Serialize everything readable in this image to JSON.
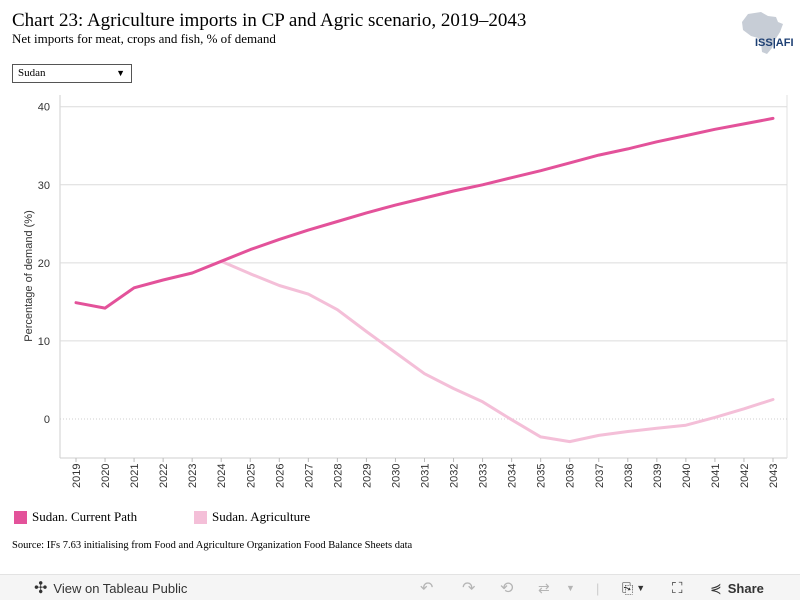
{
  "header": {
    "title": "Chart 23: Agriculture imports in CP and Agric scenario, 2019–2043",
    "subtitle": "Net imports for meat, crops and fish, % of demand",
    "logo_text": "ISS|AFI"
  },
  "filter": {
    "selected": "Sudan"
  },
  "chart_data": {
    "type": "line",
    "x": [
      2019,
      2020,
      2021,
      2022,
      2023,
      2024,
      2025,
      2026,
      2027,
      2028,
      2029,
      2030,
      2031,
      2032,
      2033,
      2034,
      2035,
      2036,
      2037,
      2038,
      2039,
      2040,
      2041,
      2042,
      2043
    ],
    "series": [
      {
        "name": "Sudan. Current Path",
        "color": "#e3529a",
        "values": [
          14.9,
          14.2,
          16.8,
          17.8,
          18.7,
          20.2,
          21.7,
          23.0,
          24.2,
          25.3,
          26.4,
          27.4,
          28.3,
          29.2,
          30.0,
          30.9,
          31.8,
          32.8,
          33.8,
          34.6,
          35.5,
          36.3,
          37.1,
          37.8,
          38.5
        ]
      },
      {
        "name": "Sudan. Agriculture",
        "color": "#f4bfd8",
        "values": [
          null,
          null,
          null,
          null,
          null,
          20.2,
          18.6,
          17.1,
          16.0,
          14.0,
          11.2,
          8.5,
          5.8,
          3.9,
          2.2,
          -0.1,
          -2.3,
          -2.9,
          -2.1,
          -1.6,
          -1.2,
          -0.8,
          0.2,
          1.3,
          2.5
        ]
      }
    ],
    "yticks": [
      0,
      10,
      20,
      30,
      40
    ],
    "ylim": [
      -5,
      41.5
    ],
    "ylabel": "Percentage of demand (%)",
    "xlabel": "",
    "grid": true,
    "legend": "bottom-left"
  },
  "legend": {
    "items": [
      {
        "label": "Sudan. Current Path",
        "color": "#e3529a"
      },
      {
        "label": "Sudan. Agriculture",
        "color": "#f4bfd8"
      }
    ]
  },
  "source": "Source: IFs 7.63 initialising from Food and Agriculture Organization Food Balance Sheets data",
  "toolbar": {
    "view_label": "View on Tableau Public",
    "share_label": "Share"
  }
}
